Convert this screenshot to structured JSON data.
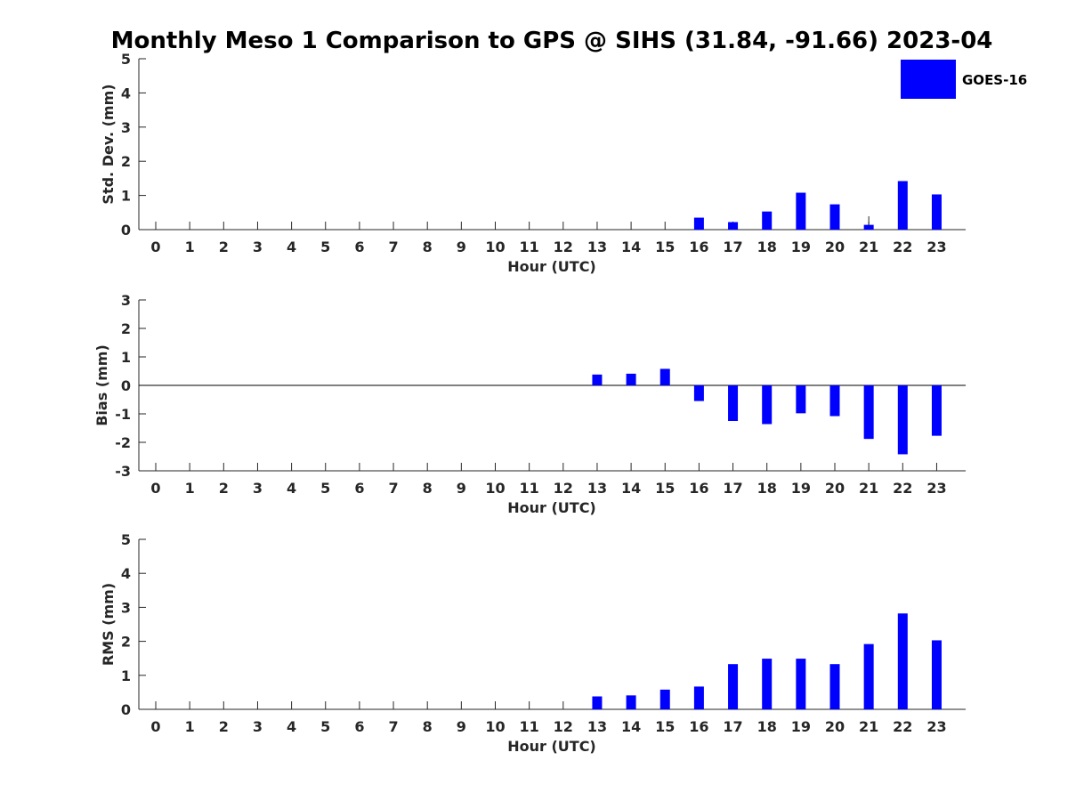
{
  "title": "Monthly Meso 1 Comparison to GPS @ SIHS (31.84, -91.66) 2023-04",
  "legend": {
    "label": "GOES-16",
    "color": "#0000ff",
    "placement": "top-right"
  },
  "chart_data": [
    {
      "type": "bar",
      "xlabel": "Hour (UTC)",
      "ylabel": "Std. Dev. (mm)",
      "ylim": [
        0,
        5
      ],
      "yticks": [
        0,
        1,
        2,
        3,
        4,
        5
      ],
      "categories": [
        "0",
        "1",
        "2",
        "3",
        "4",
        "5",
        "6",
        "7",
        "8",
        "9",
        "10",
        "11",
        "12",
        "13",
        "14",
        "15",
        "16",
        "17",
        "18",
        "19",
        "20",
        "21",
        "22",
        "23"
      ],
      "series": [
        {
          "name": "GOES-16",
          "color": "#0000ff",
          "values": [
            null,
            null,
            null,
            null,
            null,
            null,
            null,
            null,
            null,
            null,
            null,
            null,
            null,
            0.0,
            0.0,
            0.0,
            0.35,
            0.22,
            0.53,
            1.08,
            0.74,
            0.14,
            1.42,
            1.03
          ]
        }
      ],
      "error_bars": [
        null,
        null,
        null,
        null,
        null,
        null,
        null,
        null,
        null,
        null,
        null,
        null,
        null,
        null,
        null,
        null,
        null,
        null,
        null,
        null,
        null,
        0.25,
        null,
        null
      ]
    },
    {
      "type": "bar",
      "xlabel": "Hour (UTC)",
      "ylabel": "Bias (mm)",
      "ylim": [
        -3,
        3
      ],
      "yticks": [
        -3,
        -2,
        -1,
        0,
        1,
        2,
        3
      ],
      "zero_line": true,
      "categories": [
        "0",
        "1",
        "2",
        "3",
        "4",
        "5",
        "6",
        "7",
        "8",
        "9",
        "10",
        "11",
        "12",
        "13",
        "14",
        "15",
        "16",
        "17",
        "18",
        "19",
        "20",
        "21",
        "22",
        "23"
      ],
      "series": [
        {
          "name": "GOES-16",
          "color": "#0000ff",
          "values": [
            null,
            null,
            null,
            null,
            null,
            null,
            null,
            null,
            null,
            null,
            null,
            null,
            null,
            0.38,
            0.41,
            0.58,
            -0.55,
            -1.25,
            -1.36,
            -0.98,
            -1.08,
            -1.88,
            -2.42,
            -1.77
          ]
        }
      ]
    },
    {
      "type": "bar",
      "xlabel": "Hour (UTC)",
      "ylabel": "RMS (mm)",
      "ylim": [
        0,
        5
      ],
      "yticks": [
        0,
        1,
        2,
        3,
        4,
        5
      ],
      "categories": [
        "0",
        "1",
        "2",
        "3",
        "4",
        "5",
        "6",
        "7",
        "8",
        "9",
        "10",
        "11",
        "12",
        "13",
        "14",
        "15",
        "16",
        "17",
        "18",
        "19",
        "20",
        "21",
        "22",
        "23"
      ],
      "series": [
        {
          "name": "GOES-16",
          "color": "#0000ff",
          "values": [
            null,
            null,
            null,
            null,
            null,
            null,
            null,
            null,
            null,
            null,
            null,
            null,
            null,
            0.38,
            0.41,
            0.58,
            0.67,
            1.33,
            1.49,
            1.49,
            1.33,
            1.92,
            2.82,
            2.03
          ]
        }
      ]
    }
  ]
}
